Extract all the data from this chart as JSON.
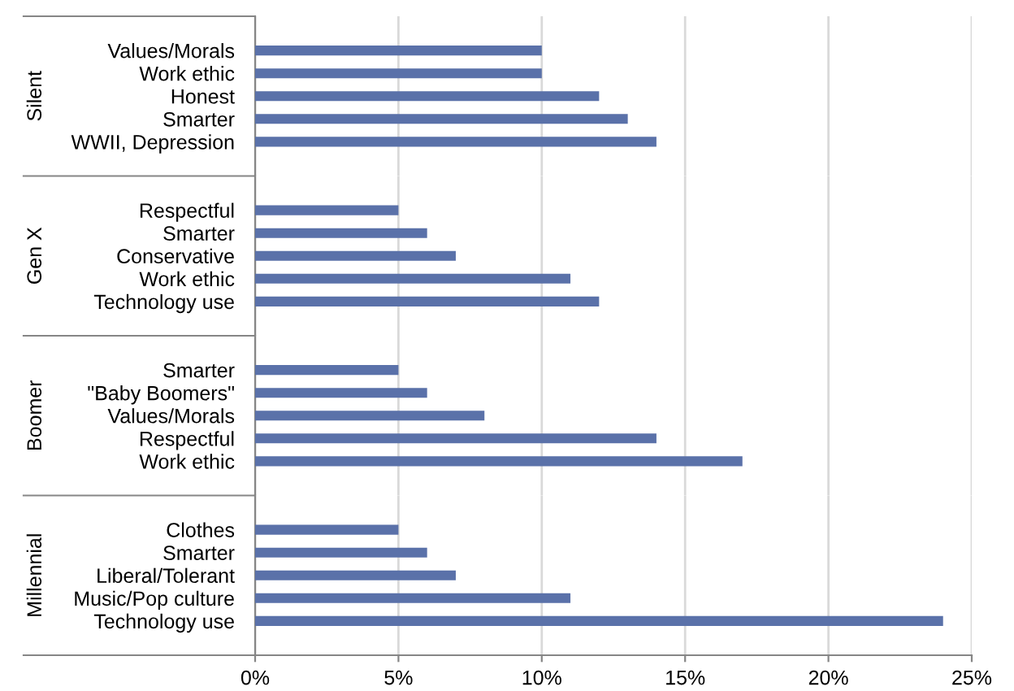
{
  "chart_data": [
    {
      "type": "bar",
      "orientation": "horizontal",
      "ylabel": "Silent",
      "categories": [
        "Values/Morals",
        "Work ethic",
        "Honest",
        "Smarter",
        "WWII, Depression"
      ],
      "values": [
        10,
        10,
        12,
        13,
        14
      ],
      "color": "#5a71a9",
      "xlim": [
        0,
        25
      ],
      "xticks": [
        {
          "value": 0,
          "label": null
        },
        {
          "value": 5,
          "label": null
        },
        {
          "value": 10,
          "label": null
        },
        {
          "value": 15,
          "label": null
        },
        {
          "value": 20,
          "label": null
        },
        {
          "value": 25,
          "label": null
        }
      ],
      "grid": "x",
      "tick_labels": "y"
    },
    {
      "type": "bar",
      "orientation": "horizontal",
      "ylabel": "Gen X",
      "categories": [
        "Respectful",
        "Smarter",
        "Conservative",
        "Work ethic",
        "Technology use"
      ],
      "values": [
        5,
        6,
        7,
        11,
        12
      ],
      "color": "#5a71a9",
      "xlim": [
        0,
        25
      ],
      "xticks": [
        {
          "value": 0,
          "label": null
        },
        {
          "value": 5,
          "label": null
        },
        {
          "value": 10,
          "label": null
        },
        {
          "value": 15,
          "label": null
        },
        {
          "value": 20,
          "label": null
        },
        {
          "value": 25,
          "label": null
        }
      ],
      "grid": "x",
      "tick_labels": "y"
    },
    {
      "type": "bar",
      "orientation": "horizontal",
      "ylabel": "Boomer",
      "categories": [
        "Smarter",
        "\"Baby Boomers\"",
        "Values/Morals",
        "Respectful",
        "Work ethic"
      ],
      "values": [
        5,
        6,
        8,
        14,
        17
      ],
      "color": "#5a71a9",
      "xlim": [
        0,
        25
      ],
      "xticks": [
        {
          "value": 0,
          "label": null
        },
        {
          "value": 5,
          "label": null
        },
        {
          "value": 10,
          "label": null
        },
        {
          "value": 15,
          "label": null
        },
        {
          "value": 20,
          "label": null
        },
        {
          "value": 25,
          "label": null
        }
      ],
      "grid": "x",
      "tick_labels": "y"
    },
    {
      "type": "bar",
      "orientation": "horizontal",
      "ylabel": "Millennial",
      "categories": [
        "Clothes",
        "Smarter",
        "Liberal/Tolerant",
        "Music/Pop culture",
        "Technology use"
      ],
      "values": [
        5,
        6,
        7,
        11,
        24
      ],
      "color": "#5a71a9",
      "xlim": [
        0,
        25
      ],
      "xticks": [
        {
          "value": 0,
          "label": "0%"
        },
        {
          "value": 5,
          "label": "5%"
        },
        {
          "value": 10,
          "label": "10%"
        },
        {
          "value": 15,
          "label": "15%"
        },
        {
          "value": 20,
          "label": "20%"
        },
        {
          "value": 25,
          "label": "25%"
        }
      ],
      "grid": "x"
    }
  ]
}
